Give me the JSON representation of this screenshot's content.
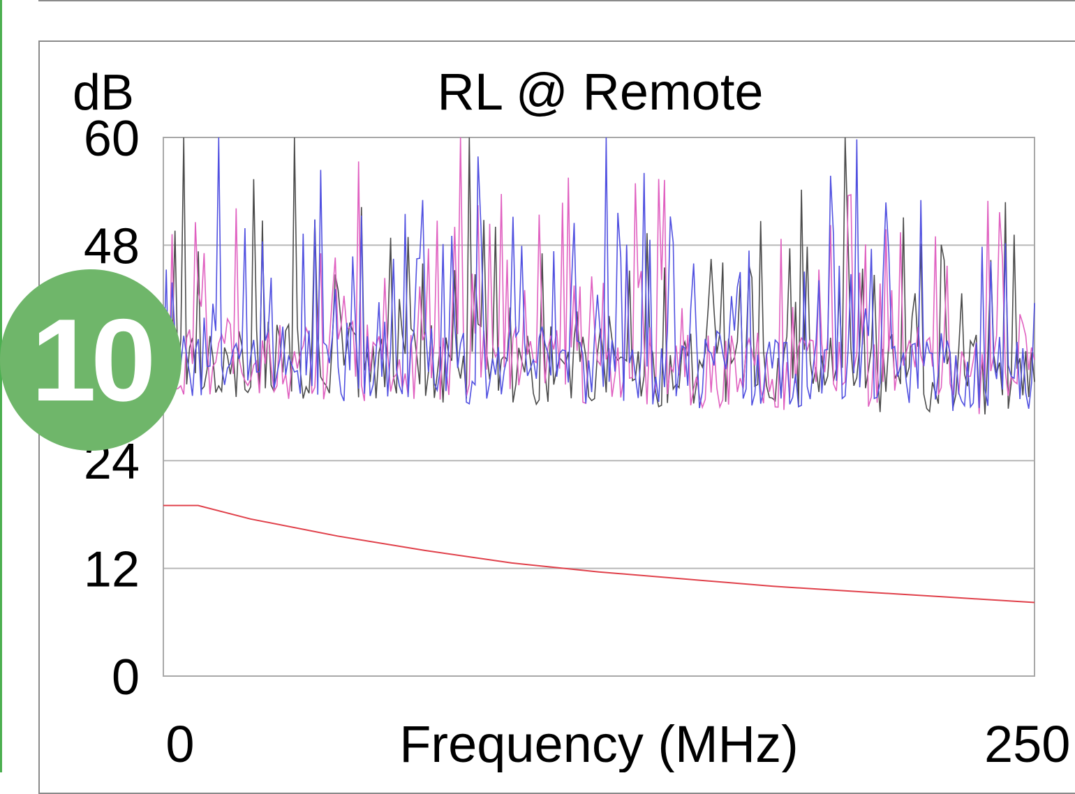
{
  "badge": {
    "number": "10",
    "color": "#6fb66a"
  },
  "chart_data": {
    "type": "line",
    "title": "RL @ Remote",
    "ylabel": "dB",
    "xlabel": "Frequency (MHz)",
    "ylim": [
      0,
      60
    ],
    "yticks": [
      0,
      12,
      24,
      48,
      60
    ],
    "xlim": [
      0,
      250
    ],
    "xtick_labels": [
      "0",
      "250"
    ],
    "grid": true,
    "series": [
      {
        "color": "#4a4a4a",
        "values": []
      },
      {
        "color": "#e060c0",
        "values": []
      },
      {
        "color": "#5050e0",
        "values": []
      }
    ],
    "limit_line": {
      "color": "#e0404a",
      "x": [
        0,
        10,
        25,
        50,
        75,
        100,
        125,
        150,
        175,
        200,
        225,
        250
      ],
      "y": [
        19,
        19,
        17.5,
        15.6,
        14,
        12.6,
        11.6,
        10.8,
        10,
        9.4,
        8.8,
        8.2
      ]
    }
  }
}
